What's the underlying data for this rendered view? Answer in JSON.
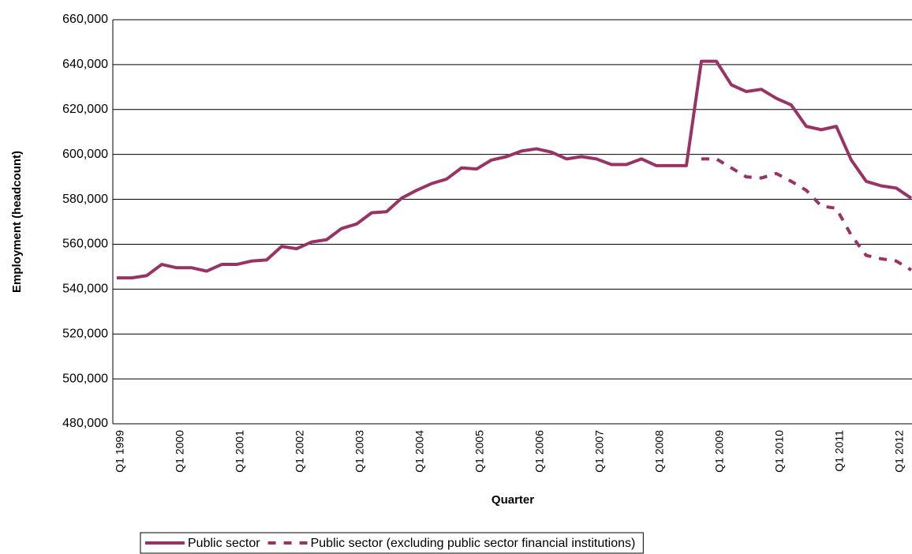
{
  "chart_data": {
    "type": "line",
    "x_label": "Quarter",
    "y_label": "Employment (headcount)",
    "categories": [
      "Q1 1999",
      null,
      null,
      null,
      "Q1 2000",
      null,
      null,
      null,
      "Q1 2001",
      null,
      null,
      null,
      "Q1 2002",
      null,
      null,
      null,
      "Q1 2003",
      null,
      null,
      null,
      "Q1 2004",
      null,
      null,
      null,
      "Q1 2005",
      null,
      null,
      null,
      "Q1 2006",
      null,
      null,
      null,
      "Q1 2007",
      null,
      null,
      null,
      "Q1 2008",
      null,
      null,
      null,
      "Q1 2009",
      null,
      null,
      null,
      "Q1 2010",
      null,
      null,
      null,
      "Q1 2011",
      null,
      null,
      null,
      "Q1 2012",
      null
    ],
    "series": [
      {
        "name": "Public sector",
        "color": "#993366",
        "dash": false,
        "values": [
          545000,
          545000,
          546000,
          551000,
          549500,
          549500,
          548000,
          551000,
          551000,
          552500,
          553000,
          559000,
          558000,
          561000,
          562000,
          567000,
          569000,
          574000,
          574500,
          580500,
          584000,
          587000,
          589000,
          594000,
          593500,
          597500,
          599000,
          601500,
          602500,
          601000,
          598000,
          599000,
          598000,
          595500,
          595500,
          598000,
          595000,
          595000,
          595000,
          641500,
          641500,
          631000,
          628000,
          629000,
          625000,
          622000,
          612500,
          611000,
          612500,
          597500,
          588000,
          586000,
          585000,
          580500
        ]
      },
      {
        "name": "Public sector (excluding public sector financial institutions)",
        "color": "#993366",
        "dash": true,
        "values": [
          null,
          null,
          null,
          null,
          null,
          null,
          null,
          null,
          null,
          null,
          null,
          null,
          null,
          null,
          null,
          null,
          null,
          null,
          null,
          null,
          null,
          null,
          null,
          null,
          null,
          null,
          null,
          null,
          null,
          null,
          null,
          null,
          null,
          null,
          null,
          null,
          null,
          null,
          null,
          598000,
          598000,
          594000,
          590000,
          589500,
          591500,
          588000,
          584000,
          577000,
          576000,
          564000,
          555000,
          553500,
          552500,
          548500
        ]
      }
    ],
    "ylim": [
      480000,
      660000
    ],
    "yticks": [
      {
        "value": 480000,
        "label": "480,000"
      },
      {
        "value": 500000,
        "label": "500,000"
      },
      {
        "value": 520000,
        "label": "520,000"
      },
      {
        "value": 540000,
        "label": "540,000"
      },
      {
        "value": 560000,
        "label": "560,000"
      },
      {
        "value": 580000,
        "label": "580,000"
      },
      {
        "value": 600000,
        "label": "600,000"
      },
      {
        "value": 620000,
        "label": "620,000"
      },
      {
        "value": 640000,
        "label": "640,000"
      },
      {
        "value": 660000,
        "label": "660,000"
      }
    ],
    "grid": true,
    "legend": "bottom"
  }
}
